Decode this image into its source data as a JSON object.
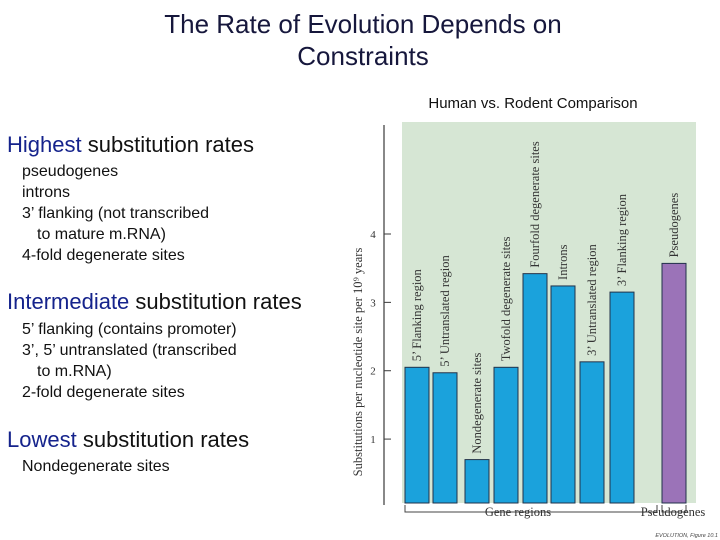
{
  "slide": {
    "title_line1": "The Rate of Evolution Depends on",
    "title_line2": "Constraints",
    "subtitle": "Human vs. Rodent Comparison"
  },
  "sections": {
    "highest": {
      "emphasis": "Highest",
      "rest": " substitution rates",
      "items": [
        "pseudogenes",
        "introns",
        "3’ flanking (not transcribed",
        "to mature m.RNA)",
        "4-fold degenerate sites"
      ]
    },
    "intermediate": {
      "emphasis": "Intermediate",
      "rest": " substitution rates",
      "items": [
        "5’ flanking (contains promoter)",
        "3’, 5’ untranslated (transcribed",
        "to m.RNA)",
        "2-fold degenerate sites"
      ]
    },
    "lowest": {
      "emphasis": "Lowest",
      "rest": " substitution rates",
      "items": [
        "Nondegenerate sites"
      ]
    }
  },
  "colors": {
    "panel": "#d6e6d4",
    "bar_gene": "#1ba2dc",
    "bar_pseudo": "#9b73b8",
    "title": "#16173c",
    "emphasis": "#15238c"
  },
  "chart_data": {
    "type": "bar",
    "ylabel": "Substitutions per nucleotide site per 10⁹ years",
    "ylim": [
      0,
      4.7
    ],
    "yticks": [
      1,
      2,
      3,
      4
    ],
    "grid": false,
    "groups": [
      "Gene regions",
      "Pseudogenes"
    ],
    "categories": [
      "5’ Flanking region",
      "5’ Untranslated region",
      "Nondegenerate sites",
      "Twofold degenerate sites",
      "Fourfold degenerate sites",
      "Introns",
      "3’ Untranslated region",
      "3’ Flanking region",
      "Pseudogenes"
    ],
    "values": [
      2.05,
      1.97,
      0.7,
      2.05,
      3.42,
      3.24,
      2.13,
      3.15,
      3.57
    ],
    "group_of": [
      0,
      0,
      0,
      0,
      0,
      0,
      0,
      0,
      1
    ],
    "credit": "EVOLUTION, Figure 10.1"
  }
}
